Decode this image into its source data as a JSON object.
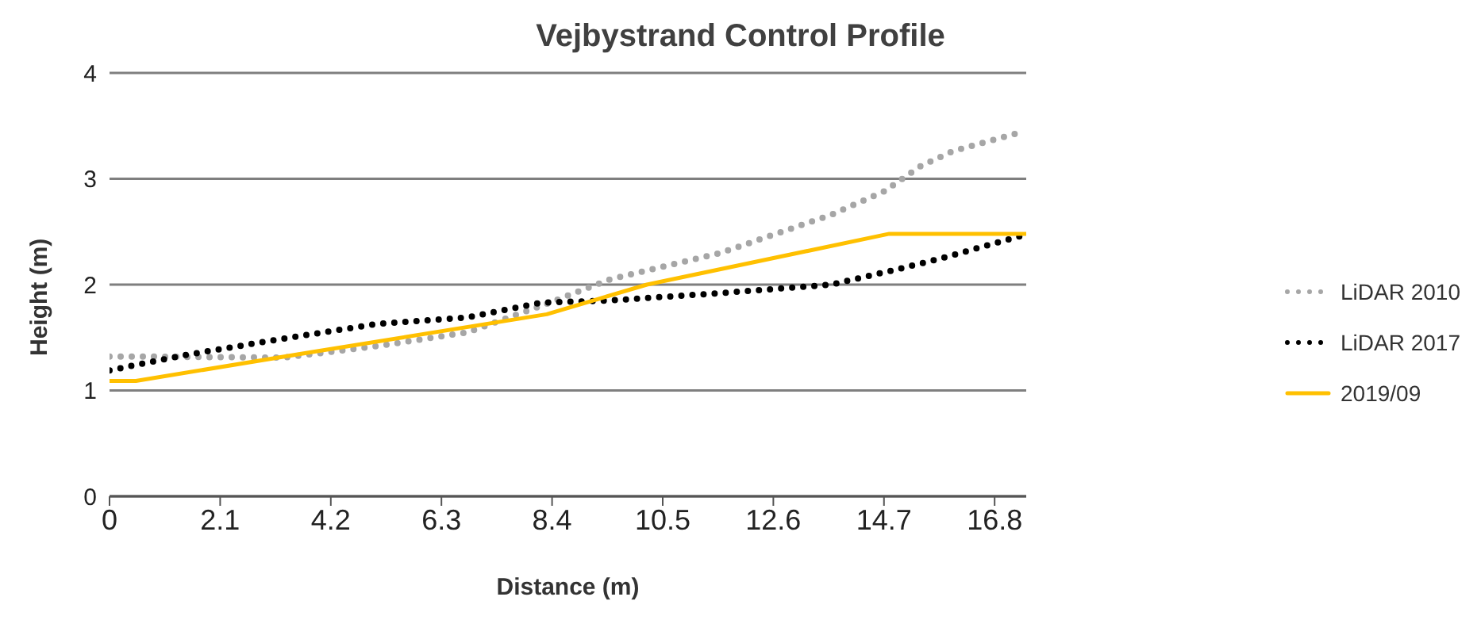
{
  "chart_data": {
    "type": "line",
    "title": "Vejbystrand Control Profile",
    "xlabel": "Distance (m)",
    "ylabel": "Height (m)",
    "xlim": [
      0,
      17.4
    ],
    "xticks": [
      0,
      2.1,
      4.2,
      6.3,
      8.4,
      10.5,
      12.6,
      14.7,
      16.8
    ],
    "ylim": [
      0,
      4
    ],
    "yticks": [
      0,
      1,
      2,
      3,
      4
    ],
    "grid": "y",
    "legend": "right",
    "marker": "none",
    "series": [
      {
        "name": "LiDAR 2010",
        "color": "#a6a6a6",
        "line_style": "dotted",
        "x": [
          0,
          0.7,
          3.3,
          5.1,
          6.8,
          8.2,
          9.5,
          11.6,
          13.7,
          14.7,
          15.4,
          16.0,
          17.3
        ],
        "values": [
          1.32,
          1.32,
          1.31,
          1.42,
          1.55,
          1.8,
          2.05,
          2.3,
          2.66,
          2.88,
          3.12,
          3.26,
          3.44
        ]
      },
      {
        "name": "LiDAR 2017",
        "color": "#000000",
        "line_style": "dotted",
        "x": [
          0,
          1.5,
          3.3,
          5.1,
          6.8,
          8.2,
          9.5,
          11.6,
          13.7,
          15.0,
          15.8,
          17.3
        ],
        "values": [
          1.19,
          1.34,
          1.49,
          1.63,
          1.69,
          1.83,
          1.85,
          1.92,
          2.0,
          2.15,
          2.25,
          2.46
        ]
      },
      {
        "name": "2019/09",
        "color": "#ffc000",
        "line_style": "solid",
        "x": [
          0,
          0.5,
          3.8,
          8.3,
          10.2,
          14.8,
          17.4
        ],
        "values": [
          1.09,
          1.09,
          1.36,
          1.72,
          2.0,
          2.48,
          2.48
        ]
      }
    ]
  }
}
